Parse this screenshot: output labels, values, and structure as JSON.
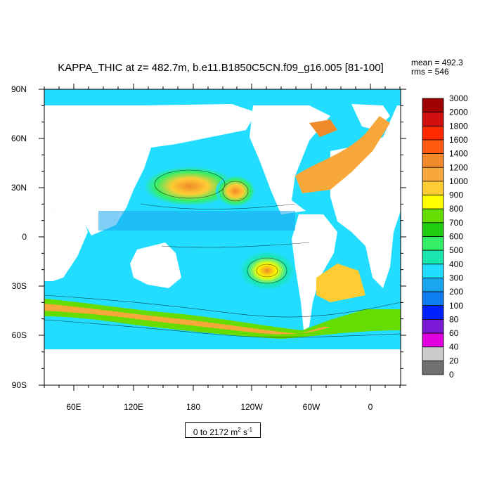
{
  "title": "KAPPA_THIC at z= 482.7m, b.e11.B1850C5CN.f09_g16.005 [81-100]",
  "stats": {
    "mean": "mean = 492.3",
    "rms": "rms = 546"
  },
  "range": {
    "text": "0 to 2172 m",
    "unit_sup1": "2",
    "mid": " s",
    "unit_sup2": "-1"
  },
  "map": {
    "lon_ticks": [
      "60E",
      "120E",
      "180",
      "120W",
      "60W",
      "0"
    ],
    "lat_ticks": [
      "90N",
      "60N",
      "30N",
      "0",
      "30S",
      "60S",
      "90S"
    ],
    "land_color": "#ffffff"
  },
  "colorbar": {
    "levels": [
      "3000",
      "2000",
      "1800",
      "1600",
      "1400",
      "1200",
      "1000",
      "900",
      "800",
      "700",
      "600",
      "500",
      "400",
      "300",
      "200",
      "100",
      "80",
      "60",
      "40",
      "20",
      "0"
    ],
    "colors": [
      "#a00000",
      "#d21010",
      "#ff2a00",
      "#ff5a10",
      "#f08a2a",
      "#f8a83a",
      "#ffcc33",
      "#ffff00",
      "#66dd00",
      "#22cc11",
      "#33ee66",
      "#1ae6b0",
      "#22ddff",
      "#1aa6ee",
      "#0f7eee",
      "#0022ff",
      "#7a1ad6",
      "#e000e0",
      "#cccccc",
      "#707070"
    ]
  }
}
